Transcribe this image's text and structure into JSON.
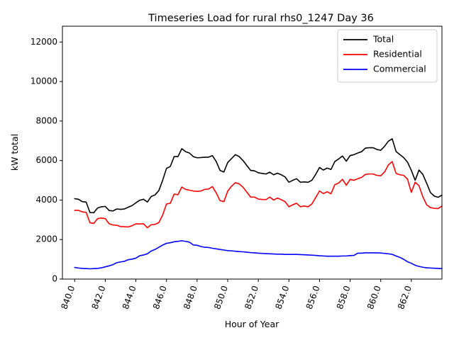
{
  "chart_data": {
    "type": "line",
    "title": "Timeseries Load for rural rhs0_1247  Day 36",
    "xlabel": "Hour of Year",
    "ylabel": "kW total",
    "xlim": [
      839.2,
      864.0
    ],
    "ylim": [
      0,
      12800
    ],
    "xticks": [
      840,
      842,
      844,
      846,
      848,
      850,
      852,
      854,
      856,
      858,
      860,
      862
    ],
    "xtick_labels": [
      "840.0",
      "842.0",
      "844.0",
      "846.0",
      "848.0",
      "850.0",
      "852.0",
      "854.0",
      "856.0",
      "858.0",
      "860.0",
      "862.0"
    ],
    "yticks": [
      0,
      2000,
      4000,
      6000,
      8000,
      10000,
      12000
    ],
    "ytick_labels": [
      "0",
      "2000",
      "4000",
      "6000",
      "8000",
      "10000",
      "12000"
    ],
    "grid": false,
    "legend_position": "top-right",
    "x_start": 840.0,
    "x_step": 0.25,
    "series": [
      {
        "name": "Total",
        "color": "#000000",
        "values": [
          4070,
          4040,
          3920,
          3900,
          3370,
          3360,
          3600,
          3660,
          3680,
          3470,
          3450,
          3550,
          3530,
          3550,
          3640,
          3720,
          3860,
          3990,
          4040,
          3900,
          4180,
          4260,
          4480,
          5000,
          5600,
          5700,
          6200,
          6200,
          6600,
          6450,
          6380,
          6200,
          6140,
          6150,
          6170,
          6170,
          6250,
          5950,
          5500,
          5420,
          5900,
          6100,
          6300,
          6200,
          6000,
          5750,
          5500,
          5480,
          5380,
          5350,
          5320,
          5410,
          5280,
          5360,
          5280,
          5170,
          4900,
          5000,
          5080,
          4900,
          4920,
          4900,
          5000,
          5300,
          5650,
          5520,
          5620,
          5550,
          5950,
          6080,
          6230,
          5970,
          6250,
          6300,
          6380,
          6450,
          6630,
          6650,
          6650,
          6560,
          6520,
          6720,
          6980,
          7100,
          6460,
          6300,
          6150,
          5920,
          5500,
          5000,
          5520,
          5300,
          4850,
          4380,
          4200,
          4140,
          4250
        ]
      },
      {
        "name": "Residential",
        "color": "#ff0000",
        "values": [
          3480,
          3480,
          3400,
          3380,
          2850,
          2820,
          3060,
          3090,
          3060,
          2800,
          2740,
          2720,
          2660,
          2650,
          2640,
          2700,
          2800,
          2790,
          2800,
          2600,
          2750,
          2770,
          2860,
          3240,
          3800,
          3840,
          4300,
          4270,
          4660,
          4540,
          4500,
          4460,
          4440,
          4460,
          4540,
          4560,
          4680,
          4360,
          3970,
          3920,
          4450,
          4700,
          4880,
          4820,
          4650,
          4400,
          4150,
          4150,
          4050,
          4030,
          4020,
          4150,
          4000,
          4100,
          4020,
          3920,
          3660,
          3760,
          3840,
          3660,
          3700,
          3660,
          3800,
          4130,
          4460,
          4330,
          4420,
          4320,
          4780,
          4860,
          5050,
          4750,
          5050,
          5000,
          5080,
          5150,
          5300,
          5320,
          5320,
          5250,
          5230,
          5420,
          5780,
          5950,
          5350,
          5280,
          5250,
          5060,
          4390,
          4900,
          4730,
          4170,
          3760,
          3620,
          3580,
          3570,
          3700
        ]
      },
      {
        "name": "Commercial",
        "color": "#0000ff",
        "values": [
          590,
          560,
          540,
          530,
          520,
          530,
          540,
          570,
          620,
          670,
          730,
          830,
          870,
          900,
          980,
          1010,
          1060,
          1180,
          1220,
          1280,
          1420,
          1500,
          1610,
          1720,
          1810,
          1840,
          1890,
          1910,
          1940,
          1910,
          1870,
          1730,
          1710,
          1650,
          1610,
          1600,
          1560,
          1530,
          1500,
          1470,
          1440,
          1430,
          1410,
          1390,
          1380,
          1360,
          1340,
          1330,
          1310,
          1300,
          1290,
          1280,
          1270,
          1260,
          1260,
          1250,
          1250,
          1250,
          1250,
          1240,
          1230,
          1220,
          1210,
          1200,
          1180,
          1170,
          1160,
          1160,
          1160,
          1160,
          1170,
          1170,
          1190,
          1200,
          1310,
          1310,
          1330,
          1330,
          1330,
          1330,
          1320,
          1300,
          1280,
          1250,
          1170,
          1100,
          1000,
          880,
          800,
          700,
          640,
          600,
          570,
          560,
          550,
          540,
          530
        ]
      }
    ]
  }
}
